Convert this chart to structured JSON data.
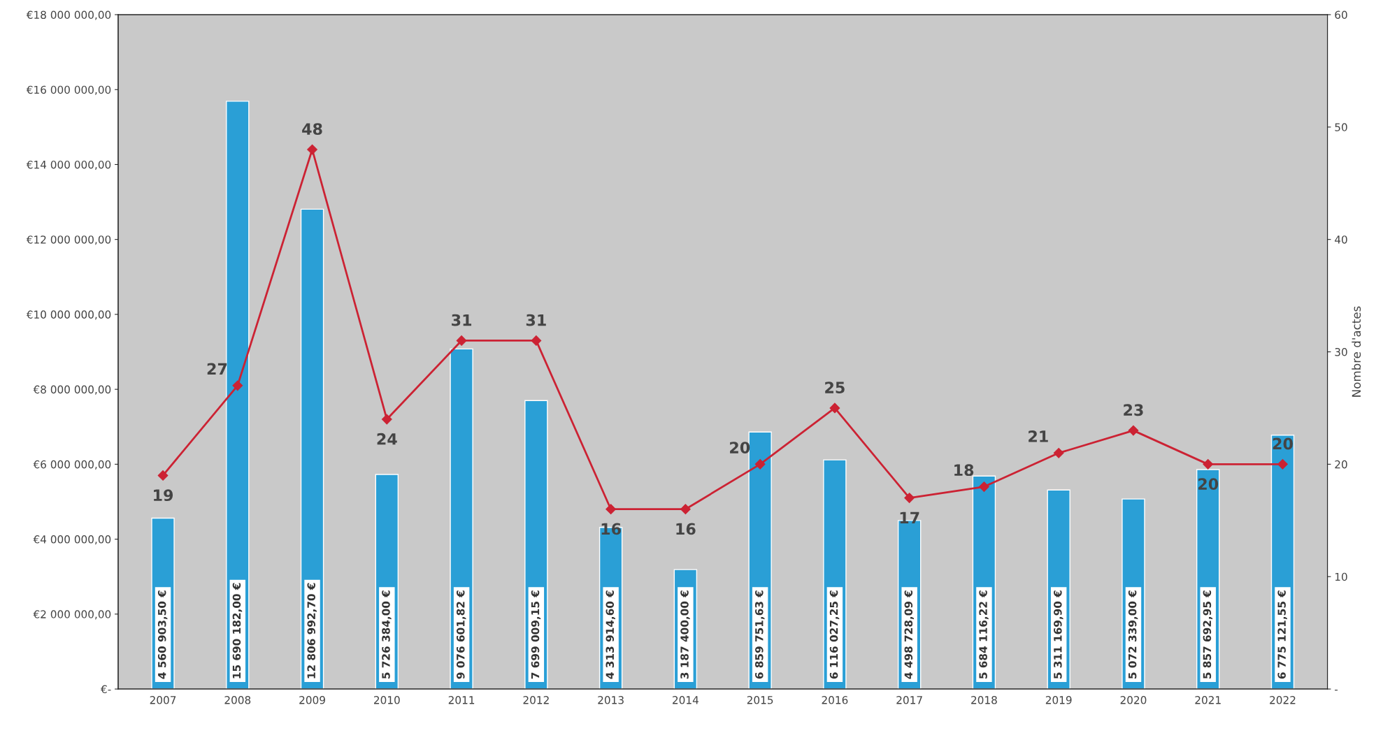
{
  "chart_data": {
    "type": "bar",
    "y2label": "Nombre d'actes",
    "categories": [
      "2007",
      "2008",
      "2009",
      "2010",
      "2011",
      "2012",
      "2013",
      "2014",
      "2015",
      "2016",
      "2017",
      "2018",
      "2019",
      "2020",
      "2021",
      "2022"
    ],
    "series": [
      {
        "color": "#2a9fd6",
        "values": [
          4560903.5,
          15690182.0,
          12806992.7,
          5726384.0,
          9076601.82,
          7699009.15,
          4313914.6,
          3187400.0,
          6859751.63,
          6116027.25,
          4498728.09,
          5684116.22,
          5311169.9,
          5072339.0,
          5857692.95,
          6775121.55
        ],
        "value_labels": [
          "4 560 903,50 €",
          "15 690 182,00 €",
          "12 806 992,70 €",
          "5 726 384,00 €",
          "9 076 601,82 €",
          "7 699 009,15 €",
          "4 313 914,60 €",
          "3 187 400,00 €",
          "6 859 751,63 €",
          "6 116 027,25 €",
          "4 498 728,09 €",
          "5 684 116,22 €",
          "5 311 169,90 €",
          "5 072 339,00 €",
          "5 857 692,95 €",
          "6 775 121,55 €"
        ]
      },
      {
        "type": "line",
        "axis": "y2",
        "color": "#cc2233",
        "marker": "diamond",
        "values": [
          19,
          27,
          48,
          24,
          31,
          31,
          16,
          16,
          20,
          25,
          17,
          18,
          21,
          23,
          20,
          20
        ],
        "value_labels": [
          "19",
          "27",
          "48",
          "24",
          "31",
          "31",
          "16",
          "16",
          "20",
          "25",
          "17",
          "18",
          "21",
          "23",
          "20",
          "20"
        ]
      }
    ],
    "ylim": [
      0,
      18000000
    ],
    "yticks": [
      {
        "value": 0,
        "label": "€-"
      },
      {
        "value": 2000000,
        "label": "€2 000 000,00"
      },
      {
        "value": 4000000,
        "label": "€4 000 000,00"
      },
      {
        "value": 6000000,
        "label": "€6 000 000,00"
      },
      {
        "value": 8000000,
        "label": "€8 000 000,00"
      },
      {
        "value": 10000000,
        "label": "€10 000 000,00"
      },
      {
        "value": 12000000,
        "label": "€12 000 000,00"
      },
      {
        "value": 14000000,
        "label": "€14 000 000,00"
      },
      {
        "value": 16000000,
        "label": "€16 000 000,00"
      },
      {
        "value": 18000000,
        "label": "€18 000 000,00"
      }
    ],
    "y2lim": [
      0,
      60
    ],
    "y2ticks": [
      {
        "value": 0,
        "label": "-"
      },
      10,
      20,
      30,
      40,
      50,
      60
    ],
    "legend": false
  }
}
